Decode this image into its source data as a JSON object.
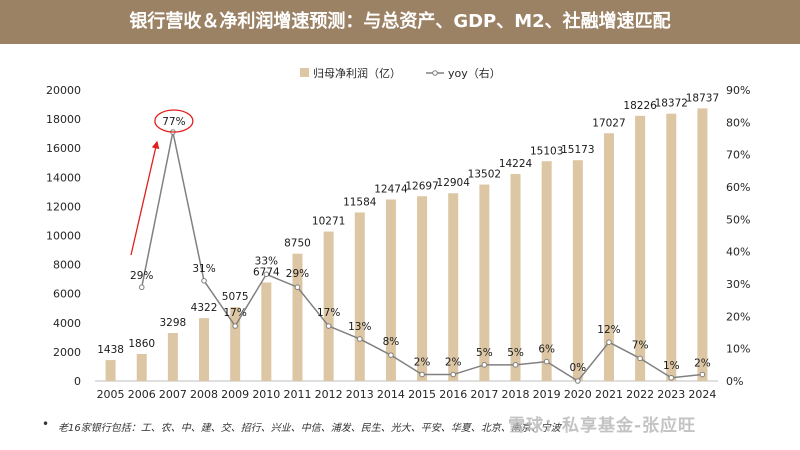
{
  "header": {
    "title": "银行营收＆净利润增速预测：与总资产、GDP、M2、社融增速匹配"
  },
  "colors": {
    "header_bg": "#9c8265",
    "bar": "#dcc6a4",
    "line": "#808080",
    "annotation": "#e0201c"
  },
  "chart_data": {
    "type": "bar",
    "categories": [
      "2005",
      "2006",
      "2007",
      "2008",
      "2009",
      "2010",
      "2011",
      "2012",
      "2013",
      "2014",
      "2015",
      "2016",
      "2017",
      "2018",
      "2019",
      "2020",
      "2021",
      "2022",
      "2023",
      "2024"
    ],
    "series": [
      {
        "name": "归母净利润（亿）",
        "type": "bar",
        "axis": "left",
        "values": [
          1438,
          1860,
          3298,
          4322,
          5075,
          6774,
          8750,
          10271,
          11584,
          12474,
          12697,
          12904,
          13502,
          14224,
          15103,
          15173,
          17027,
          18226,
          18372,
          18737
        ],
        "labels": [
          "1438",
          "1860",
          "3298",
          "4322",
          "5075",
          "6774",
          "8750",
          "10271",
          "11584",
          "12474",
          "12697",
          "12904",
          "13502",
          "14224",
          "15103",
          "15173",
          "17027",
          "18226",
          "18372",
          "18737"
        ]
      },
      {
        "name": "yoy（右）",
        "type": "line",
        "axis": "right",
        "values": [
          null,
          29,
          77,
          31,
          17,
          33,
          29,
          17,
          13,
          8,
          2,
          2,
          5,
          5,
          6,
          0,
          12,
          7,
          1,
          2
        ],
        "labels": [
          "",
          "29%",
          "77%",
          "31%",
          "17%",
          "33%",
          "29%",
          "17%",
          "13%",
          "8%",
          "2%",
          "2%",
          "5%",
          "5%",
          "6%",
          "0%",
          "12%",
          "7%",
          "1%",
          "2%"
        ]
      }
    ],
    "y_left": {
      "lim": [
        0,
        20000
      ],
      "ticks": [
        0,
        2000,
        4000,
        6000,
        8000,
        10000,
        12000,
        14000,
        16000,
        18000,
        20000
      ],
      "tick_labels": [
        "0",
        "2000",
        "4000",
        "6000",
        "8000",
        "10000",
        "12000",
        "14000",
        "16000",
        "18000",
        "20000"
      ]
    },
    "y_right": {
      "lim": [
        0,
        90
      ],
      "ticks": [
        0,
        10,
        20,
        30,
        40,
        50,
        60,
        70,
        80,
        90
      ],
      "tick_labels": [
        "0%",
        "10%",
        "20%",
        "30%",
        "40%",
        "50%",
        "60%",
        "70%",
        "80%",
        "90%"
      ]
    },
    "legend_position": "top-center",
    "grid": false,
    "highlight": {
      "category": "2007",
      "label": "77%"
    }
  },
  "footnote": "老16家银行包括：工、农、中、建、交、招行、兴业、中信、浦发、民生、光大、平安、华夏、北京、南京、宁波",
  "watermark": "雪球：私享基金-张应旺"
}
